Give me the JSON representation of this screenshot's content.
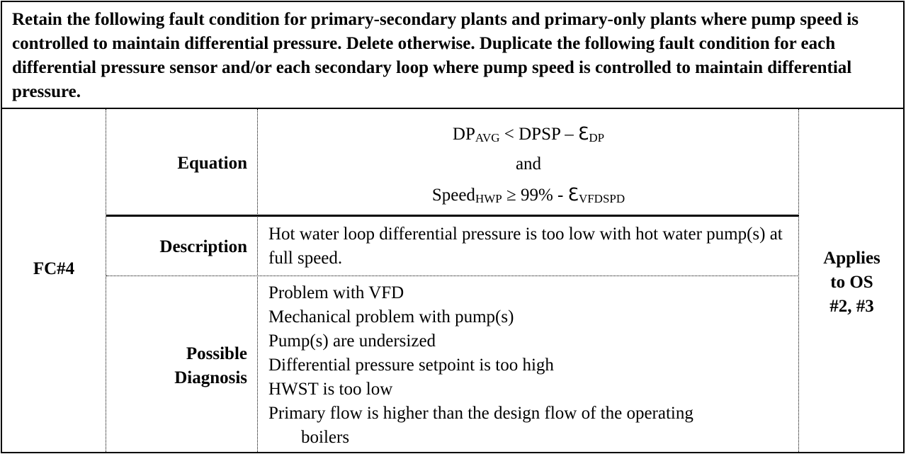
{
  "header": {
    "text": "Retain the following fault condition for primary-secondary plants and primary-only plants where pump speed is controlled to maintain differential pressure. Delete otherwise. Duplicate the following fault condition for each differential pressure sensor and/or each secondary loop where pump speed is controlled to maintain differential pressure."
  },
  "fault": {
    "id": "FC#4",
    "equation_label": "Equation",
    "equation": {
      "line1_main": "DP",
      "line1_sub1": "AVG",
      "line1_mid": " < DPSP – ℇ",
      "line1_sub2": "DP",
      "line2": "and",
      "line3_main": "Speed",
      "line3_sub1": "HWP",
      "line3_mid": " ≥ 99% - ℇ",
      "line3_sub2": "VFDSPD"
    },
    "description_label": "Description",
    "description": "Hot water loop differential pressure is too low with hot water pump(s) at full speed.",
    "diagnosis_label_1": "Possible",
    "diagnosis_label_2": "Diagnosis",
    "diagnosis": [
      "Problem with VFD",
      "Mechanical problem with pump(s)",
      "Pump(s) are undersized",
      "Differential pressure setpoint is too high",
      "HWST is too low",
      "Primary flow is higher than the design flow of the operating"
    ],
    "diagnosis_continuation": "boilers",
    "applies_1": "Applies",
    "applies_2": "to OS",
    "applies_3": "#2, #3"
  }
}
